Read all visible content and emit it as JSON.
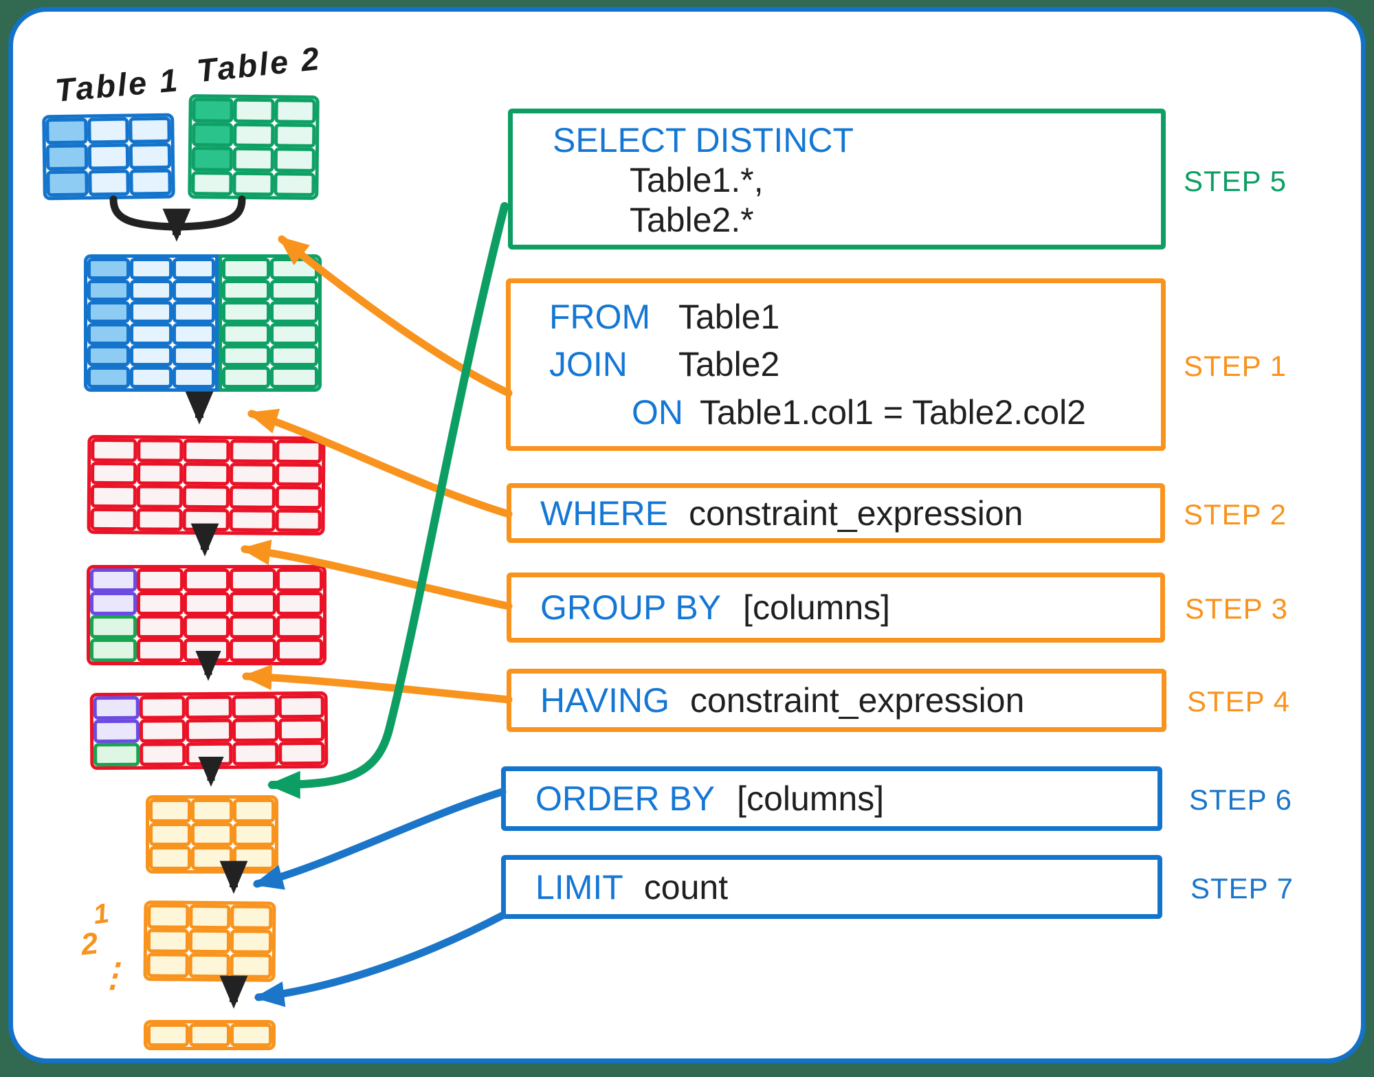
{
  "labels": {
    "table1": "Table 1",
    "table2": "Table 2",
    "row1": "1",
    "row2": "2",
    "row_dots": "⋮"
  },
  "steps": {
    "s1": "STEP 1",
    "s2": "STEP 2",
    "s3": "STEP 3",
    "s4": "STEP 4",
    "s5": "STEP 5",
    "s6": "STEP 6",
    "s7": "STEP 7"
  },
  "sql": {
    "select": {
      "kw": "SELECT DISTINCT",
      "arg1": "Table1.*,",
      "arg2": "Table2.*"
    },
    "from": {
      "kw1": "FROM",
      "arg1": "Table1",
      "kw2": "JOIN",
      "arg2": "Table2",
      "kw3": "ON",
      "arg3": "Table1.col1 = Table2.col2"
    },
    "where": {
      "kw": "WHERE",
      "arg": "constraint_expression"
    },
    "group": {
      "kw": "GROUP BY",
      "arg": "[columns]"
    },
    "having": {
      "kw": "HAVING",
      "arg": "constraint_expression"
    },
    "order": {
      "kw": "ORDER BY",
      "arg": "[columns]"
    },
    "limit": {
      "kw": "LIMIT",
      "arg": "count"
    }
  },
  "colors": {
    "outer_background": "#316A51",
    "frame_blue": "#1371C8",
    "table_blue": "#1474CC",
    "table_green": "#0FA066",
    "table_red": "#EA1226",
    "table_orange": "#F8931D",
    "highlight_purple": "#6B4BE1",
    "highlight_green": "#18A450",
    "keyword_blue": "#1577D4",
    "step_orange": "#F8931D",
    "step_green": "#0D9E63",
    "step_blue": "#1B75C8"
  }
}
